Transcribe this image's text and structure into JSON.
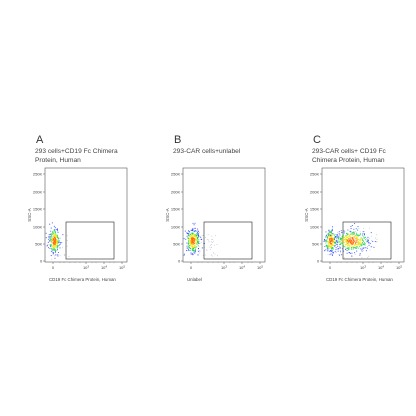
{
  "chart_data": [
    {
      "type": "scatter",
      "letter": "A",
      "title": "293 cells+CD19 Fc Chimera Protein, Human",
      "xlabel": "CD19 Fc Chimera Protein, Human",
      "ylabel": "SSC-A",
      "y_ticks": [
        "250K",
        "200K",
        "150K",
        "100K",
        "50K",
        "0"
      ],
      "x_ticks": [
        "0",
        "10^3",
        "10^4",
        "10^5"
      ],
      "gate": {
        "x_from": "10^2.5",
        "x_to": "10^5",
        "y_from": "2K",
        "y_to": "110K"
      },
      "populations": [
        {
          "name": "main",
          "x_center": "~0",
          "y_center": "~55K"
        }
      ]
    },
    {
      "type": "scatter",
      "letter": "B",
      "title": "293-CAR cells+unlabel",
      "xlabel": "Unlabel",
      "ylabel": "SSC-A",
      "y_ticks": [
        "250K",
        "200K",
        "150K",
        "100K",
        "50K",
        "0"
      ],
      "x_ticks": [
        "0",
        "10^3",
        "10^4",
        "10^5"
      ],
      "gate": {
        "x_from": "10^2.5",
        "x_to": "10^5",
        "y_from": "2K",
        "y_to": "110K"
      },
      "populations": [
        {
          "name": "main",
          "x_center": "~0",
          "y_center": "~55K"
        }
      ]
    },
    {
      "type": "scatter",
      "letter": "C",
      "title": "293-CAR  cells+  CD19  Fc Chimera Protein, Human",
      "xlabel": "CD19 Fc Chimera Protein, Human",
      "ylabel": "SSC-A",
      "y_ticks": [
        "250K",
        "200K",
        "150K",
        "100K",
        "50K",
        "0"
      ],
      "x_ticks": [
        "0",
        "10^3",
        "10^4",
        "10^5"
      ],
      "gate": {
        "x_from": "10^2.5",
        "x_to": "10^5",
        "y_from": "2K",
        "y_to": "110K"
      },
      "populations": [
        {
          "name": "negative",
          "x_center": "~0",
          "y_center": "~55K"
        },
        {
          "name": "positive",
          "x_center": "~10^3.5",
          "y_center": "~50K"
        }
      ]
    }
  ],
  "colors": {
    "density_low": "#1f3bff",
    "density_mid": "#19d23c",
    "density_high": "#f5e614",
    "density_peak": "#ff6a00",
    "sparse": "#9aa3b5"
  }
}
